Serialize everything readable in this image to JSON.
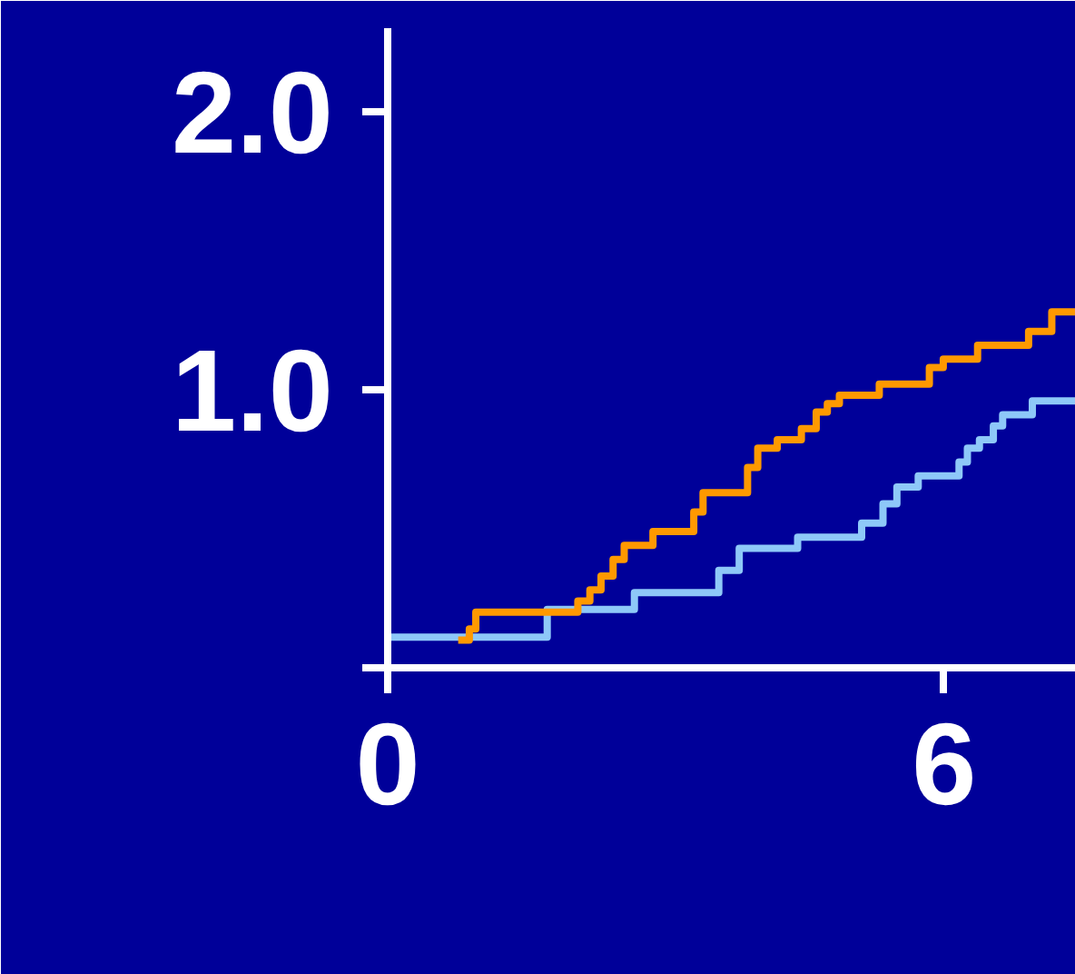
{
  "chart_data": {
    "type": "step",
    "xlim": [
      0,
      7.42
    ],
    "ylim": [
      0,
      2.3
    ],
    "xticks": [
      0,
      6
    ],
    "yticks": [
      {
        "value": 0,
        "label": null
      },
      {
        "value": 1,
        "label": "1.0"
      },
      {
        "value": 2,
        "label": "2.0"
      }
    ],
    "grid": false,
    "line_style": "solid",
    "marker": "none",
    "series": [
      {
        "color": "#8ec8f8",
        "x": [
          0,
          1.72,
          2.66,
          3.57,
          3.79,
          4.42,
          5.11,
          5.34,
          5.49,
          5.72,
          6.16,
          6.25,
          6.38,
          6.53,
          6.63,
          6.95,
          7.42
        ],
        "values": [
          0.11,
          0.21,
          0.27,
          0.35,
          0.43,
          0.47,
          0.52,
          0.59,
          0.65,
          0.69,
          0.74,
          0.79,
          0.82,
          0.87,
          0.91,
          0.96,
          0.96
        ]
      },
      {
        "color": "#ff9900",
        "x": [
          0.76,
          0.88,
          0.95,
          2.05,
          2.18,
          2.3,
          2.43,
          2.55,
          2.86,
          3.3,
          3.4,
          3.88,
          3.99,
          4.2,
          4.46,
          4.62,
          4.74,
          4.87,
          5.3,
          5.84,
          5.99,
          6.36,
          6.91,
          7.16,
          7.42
        ],
        "values": [
          0.1,
          0.14,
          0.2,
          0.24,
          0.28,
          0.33,
          0.39,
          0.44,
          0.49,
          0.56,
          0.63,
          0.72,
          0.79,
          0.82,
          0.86,
          0.92,
          0.95,
          0.98,
          1.02,
          1.08,
          1.11,
          1.16,
          1.21,
          1.28,
          1.28
        ]
      }
    ]
  }
}
